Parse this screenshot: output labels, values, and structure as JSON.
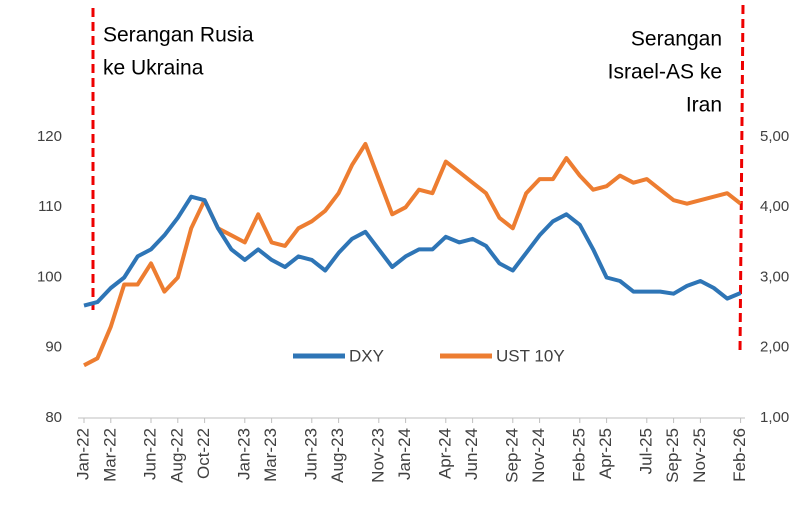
{
  "chart_data": {
    "type": "line",
    "categories": [
      "Jan-22",
      null,
      "Mar-22",
      null,
      null,
      "Jun-22",
      null,
      "Aug-22",
      null,
      "Oct-22",
      null,
      null,
      "Jan-23",
      null,
      "Mar-23",
      null,
      null,
      "Jun-23",
      null,
      "Aug-23",
      null,
      null,
      "Nov-23",
      null,
      "Jan-24",
      null,
      null,
      "Apr-24",
      null,
      "Jun-24",
      null,
      null,
      "Sep-24",
      null,
      "Nov-24",
      null,
      null,
      "Feb-25",
      null,
      "Apr-25",
      null,
      null,
      "Jul-25",
      null,
      "Sep-25",
      null,
      "Nov-25",
      null,
      null,
      "Feb-26"
    ],
    "series": [
      {
        "name": "DXY",
        "color": "#2e75b6",
        "axis": "y",
        "values": [
          96,
          96.5,
          98.5,
          100,
          103,
          104,
          106,
          108.5,
          111.5,
          111,
          107,
          104,
          102.5,
          104,
          102.5,
          101.5,
          103,
          102.5,
          101,
          103.5,
          105.5,
          106.5,
          104,
          101.5,
          103,
          104,
          104,
          105.8,
          105,
          105.5,
          104.5,
          102,
          101,
          103.5,
          106,
          108,
          109,
          107.5,
          104,
          100,
          99.5,
          98,
          98,
          98,
          97.7,
          98.8,
          99.5,
          98.5,
          97,
          97.8
        ]
      },
      {
        "name": "UST 10Y",
        "color": "#ed7d31",
        "axis": "y2",
        "values": [
          1.75,
          1.85,
          2.3,
          2.9,
          2.9,
          3.2,
          2.8,
          3.0,
          3.7,
          4.1,
          3.7,
          3.6,
          3.5,
          3.9,
          3.5,
          3.45,
          3.7,
          3.8,
          3.95,
          4.2,
          4.6,
          4.9,
          4.4,
          3.9,
          4.0,
          4.25,
          4.2,
          4.65,
          4.5,
          4.35,
          4.2,
          3.85,
          3.7,
          4.2,
          4.4,
          4.4,
          4.7,
          4.45,
          4.25,
          4.3,
          4.45,
          4.35,
          4.4,
          4.25,
          4.1,
          4.05,
          4.1,
          4.15,
          4.2,
          4.05
        ]
      }
    ],
    "ylim": [
      80,
      120
    ],
    "yticks": [
      80,
      90,
      100,
      110,
      120
    ],
    "y2lim": [
      1,
      5
    ],
    "y2ticks": [
      {
        "value": 1,
        "label": "1,00"
      },
      {
        "value": 2,
        "label": "2,00"
      },
      {
        "value": 3,
        "label": "3,00"
      },
      {
        "value": 4,
        "label": "4,00"
      },
      {
        "value": 5,
        "label": "5,00"
      }
    ],
    "annotations": [
      [
        "Serangan Rusia",
        "ke Ukraina"
      ],
      [
        "Serangan",
        "Israel-AS ke",
        "Iran"
      ]
    ],
    "legend": "bottom"
  }
}
